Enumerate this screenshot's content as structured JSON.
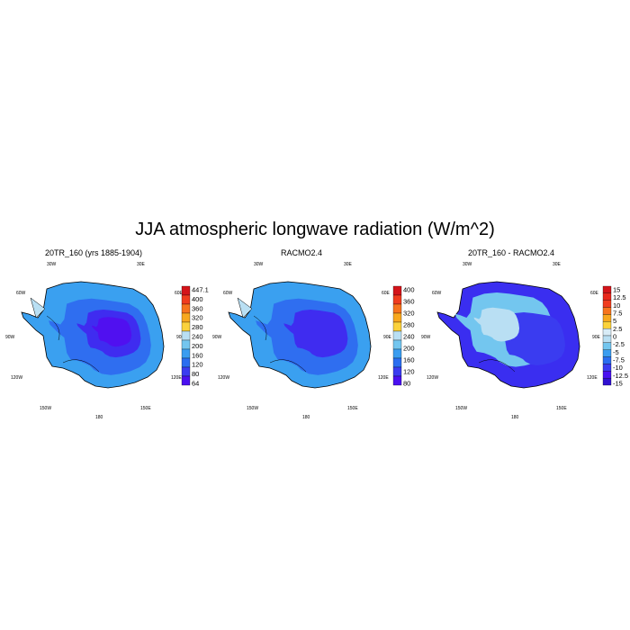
{
  "title": "JJA atmospheric longwave radiation (W/m^2)",
  "panels": [
    {
      "title": "20TR_160 (yrs 1885-1904)",
      "lon_labels": [
        "30W",
        "30E",
        "60W",
        "60E",
        "90W",
        "90E",
        "120W",
        "120E",
        "150W",
        "150E",
        "180"
      ],
      "colorbar": [
        "447.1",
        "400",
        "360",
        "320",
        "280",
        "240",
        "200",
        "160",
        "120",
        "80",
        "64"
      ],
      "colors": [
        "#d4141a",
        "#f03c1e",
        "#f7741d",
        "#f8a81e",
        "#fbd23c",
        "#b9dff3",
        "#73c6ef",
        "#3a9df0",
        "#2a6ef0",
        "#3a3cf0",
        "#4a10f0"
      ]
    },
    {
      "title": "RACMO2.4",
      "lon_labels": [
        "30W",
        "30E",
        "60W",
        "60E",
        "90W",
        "90E",
        "120W",
        "120E",
        "150W",
        "150E",
        "180"
      ],
      "colorbar": [
        "400",
        "360",
        "320",
        "280",
        "240",
        "200",
        "160",
        "120",
        "80"
      ],
      "colors": [
        "#d4141a",
        "#f03c1e",
        "#f7741d",
        "#f8a81e",
        "#fbd23c",
        "#b9dff3",
        "#73c6ef",
        "#3a9df0",
        "#2a6ef0",
        "#3a3cf0",
        "#4a10f0"
      ]
    },
    {
      "title": "20TR_160 - RACMO2.4",
      "lon_labels": [
        "30W",
        "30E",
        "60W",
        "60E",
        "90W",
        "90E",
        "120W",
        "120E",
        "150W",
        "150E",
        "180"
      ],
      "colorbar": [
        "15",
        "12.5",
        "10",
        "7.5",
        "5",
        "2.5",
        "0",
        "-2.5",
        "-5",
        "-7.5",
        "-10",
        "-12.5",
        "-15"
      ],
      "colors": [
        "#d4141a",
        "#e8281c",
        "#f03c1e",
        "#f7741d",
        "#f8a81e",
        "#fbd23c",
        "#d8ecf7",
        "#b9dff3",
        "#73c6ef",
        "#3a9df0",
        "#2a6ef0",
        "#3a3cf0",
        "#4a10f0",
        "#3010d0"
      ]
    }
  ]
}
